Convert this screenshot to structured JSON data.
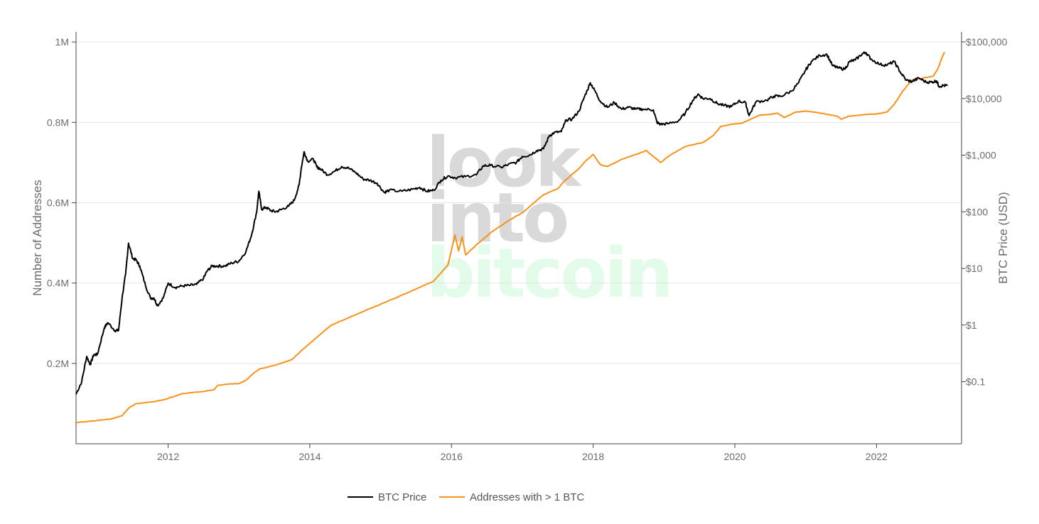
{
  "watermark": {
    "line1": "look",
    "line2": "into",
    "line3": "bitcoin",
    "color_gray": "#d9d9d9",
    "color_green": "#e3fbe9"
  },
  "chart_data": {
    "type": "line",
    "title": "",
    "x_ticks": [
      "2012",
      "2014",
      "2016",
      "2018",
      "2020",
      "2022"
    ],
    "x_range": [
      2010.7,
      2023.2
    ],
    "y_left": {
      "label": "Number of Addresses",
      "ticks": [
        {
          "value": 200000,
          "label": "0.2M"
        },
        {
          "value": 400000,
          "label": "0.4M"
        },
        {
          "value": 600000,
          "label": "0.6M"
        },
        {
          "value": 800000,
          "label": "0.8M"
        },
        {
          "value": 1000000,
          "label": "1M"
        }
      ],
      "range": [
        0,
        1025000
      ]
    },
    "y_right": {
      "label": "BTC Price (USD)",
      "scale": "log",
      "ticks": [
        {
          "value": 0.1,
          "label": "$0.1"
        },
        {
          "value": 1,
          "label": "$1"
        },
        {
          "value": 10,
          "label": "$10"
        },
        {
          "value": 100,
          "label": "$100"
        },
        {
          "value": 1000,
          "label": "$1,000"
        },
        {
          "value": 10000,
          "label": "$10,000"
        },
        {
          "value": 100000,
          "label": "$100,000"
        }
      ],
      "range": [
        0.008,
        150000
      ]
    },
    "grid": true,
    "legend_position": "bottom",
    "series": [
      {
        "name": "BTC Price",
        "axis": "right",
        "color": "#000000",
        "points": [
          [
            2010.7,
            0.06
          ],
          [
            2010.78,
            0.1
          ],
          [
            2010.85,
            0.28
          ],
          [
            2010.9,
            0.2
          ],
          [
            2010.95,
            0.3
          ],
          [
            2011.0,
            0.3
          ],
          [
            2011.1,
            0.9
          ],
          [
            2011.15,
            1.1
          ],
          [
            2011.25,
            0.8
          ],
          [
            2011.3,
            0.8
          ],
          [
            2011.35,
            3.0
          ],
          [
            2011.4,
            8
          ],
          [
            2011.44,
            28
          ],
          [
            2011.5,
            15
          ],
          [
            2011.55,
            14
          ],
          [
            2011.6,
            11
          ],
          [
            2011.68,
            5
          ],
          [
            2011.75,
            3
          ],
          [
            2011.8,
            3
          ],
          [
            2011.85,
            2.2
          ],
          [
            2011.93,
            3
          ],
          [
            2012.0,
            5.5
          ],
          [
            2012.1,
            4.6
          ],
          [
            2012.2,
            4.9
          ],
          [
            2012.3,
            5.0
          ],
          [
            2012.4,
            5.2
          ],
          [
            2012.5,
            6.7
          ],
          [
            2012.55,
            9
          ],
          [
            2012.62,
            11
          ],
          [
            2012.7,
            11
          ],
          [
            2012.8,
            11
          ],
          [
            2012.9,
            12.5
          ],
          [
            2013.0,
            13.5
          ],
          [
            2013.1,
            20
          ],
          [
            2013.18,
            40
          ],
          [
            2013.25,
            100
          ],
          [
            2013.28,
            230
          ],
          [
            2013.32,
            110
          ],
          [
            2013.38,
            120
          ],
          [
            2013.45,
            105
          ],
          [
            2013.52,
            100
          ],
          [
            2013.6,
            110
          ],
          [
            2013.7,
            125
          ],
          [
            2013.78,
            160
          ],
          [
            2013.85,
            300
          ],
          [
            2013.88,
            600
          ],
          [
            2013.92,
            1150
          ],
          [
            2013.97,
            780
          ],
          [
            2014.05,
            850
          ],
          [
            2014.1,
            620
          ],
          [
            2014.15,
            570
          ],
          [
            2014.25,
            450
          ],
          [
            2014.35,
            520
          ],
          [
            2014.45,
            630
          ],
          [
            2014.55,
            590
          ],
          [
            2014.65,
            490
          ],
          [
            2014.75,
            380
          ],
          [
            2014.85,
            360
          ],
          [
            2014.95,
            320
          ],
          [
            2015.05,
            220
          ],
          [
            2015.12,
            240
          ],
          [
            2015.3,
            230
          ],
          [
            2015.45,
            250
          ],
          [
            2015.55,
            270
          ],
          [
            2015.65,
            230
          ],
          [
            2015.75,
            240
          ],
          [
            2015.85,
            360
          ],
          [
            2015.95,
            430
          ],
          [
            2016.05,
            400
          ],
          [
            2016.2,
            420
          ],
          [
            2016.35,
            450
          ],
          [
            2016.45,
            650
          ],
          [
            2016.55,
            660
          ],
          [
            2016.7,
            610
          ],
          [
            2016.8,
            680
          ],
          [
            2016.92,
            750
          ],
          [
            2017.0,
            950
          ],
          [
            2017.1,
            1000
          ],
          [
            2017.2,
            1200
          ],
          [
            2017.3,
            1300
          ],
          [
            2017.38,
            2200
          ],
          [
            2017.45,
            2500
          ],
          [
            2017.55,
            2600
          ],
          [
            2017.62,
            4200
          ],
          [
            2017.7,
            4300
          ],
          [
            2017.8,
            6000
          ],
          [
            2017.88,
            11000
          ],
          [
            2017.96,
            19000
          ],
          [
            2018.02,
            14000
          ],
          [
            2018.1,
            9000
          ],
          [
            2018.2,
            7000
          ],
          [
            2018.3,
            8500
          ],
          [
            2018.4,
            6500
          ],
          [
            2018.5,
            7000
          ],
          [
            2018.6,
            6500
          ],
          [
            2018.7,
            6500
          ],
          [
            2018.85,
            6300
          ],
          [
            2018.9,
            3800
          ],
          [
            2018.95,
            3500
          ],
          [
            2019.05,
            3600
          ],
          [
            2019.2,
            4000
          ],
          [
            2019.3,
            5500
          ],
          [
            2019.4,
            9000
          ],
          [
            2019.48,
            12000
          ],
          [
            2019.55,
            10000
          ],
          [
            2019.65,
            10000
          ],
          [
            2019.75,
            8200
          ],
          [
            2019.85,
            7500
          ],
          [
            2019.95,
            7200
          ],
          [
            2020.05,
            9000
          ],
          [
            2020.15,
            8500
          ],
          [
            2020.2,
            5000
          ],
          [
            2020.3,
            8800
          ],
          [
            2020.45,
            9300
          ],
          [
            2020.55,
            11000
          ],
          [
            2020.65,
            11000
          ],
          [
            2020.8,
            13500
          ],
          [
            2020.9,
            19000
          ],
          [
            2021.0,
            32000
          ],
          [
            2021.08,
            45000
          ],
          [
            2021.2,
            58000
          ],
          [
            2021.3,
            60000
          ],
          [
            2021.38,
            38000
          ],
          [
            2021.45,
            35000
          ],
          [
            2021.55,
            33000
          ],
          [
            2021.62,
            45000
          ],
          [
            2021.7,
            48000
          ],
          [
            2021.8,
            62000
          ],
          [
            2021.85,
            65000
          ],
          [
            2021.92,
            50000
          ],
          [
            2022.05,
            40000
          ],
          [
            2022.15,
            39000
          ],
          [
            2022.25,
            45000
          ],
          [
            2022.33,
            30000
          ],
          [
            2022.42,
            21000
          ],
          [
            2022.5,
            20000
          ],
          [
            2022.6,
            23000
          ],
          [
            2022.7,
            19500
          ],
          [
            2022.78,
            19500
          ],
          [
            2022.85,
            20500
          ],
          [
            2022.88,
            16500
          ],
          [
            2022.95,
            17000
          ],
          [
            2023.0,
            16800
          ]
        ]
      },
      {
        "name": "Addresses with > 1 BTC",
        "axis": "left",
        "color": "#f7931a",
        "points": [
          [
            2010.7,
            53000
          ],
          [
            2011.0,
            58000
          ],
          [
            2011.2,
            62000
          ],
          [
            2011.35,
            70000
          ],
          [
            2011.45,
            90000
          ],
          [
            2011.55,
            100000
          ],
          [
            2011.8,
            105000
          ],
          [
            2011.95,
            110000
          ],
          [
            2012.2,
            125000
          ],
          [
            2012.5,
            130000
          ],
          [
            2012.65,
            135000
          ],
          [
            2012.7,
            145000
          ],
          [
            2012.8,
            148000
          ],
          [
            2013.0,
            150000
          ],
          [
            2013.1,
            158000
          ],
          [
            2013.2,
            175000
          ],
          [
            2013.3,
            187000
          ],
          [
            2013.5,
            195000
          ],
          [
            2013.75,
            210000
          ],
          [
            2013.9,
            235000
          ],
          [
            2014.1,
            265000
          ],
          [
            2014.3,
            295000
          ],
          [
            2014.6,
            318000
          ],
          [
            2014.9,
            340000
          ],
          [
            2015.2,
            362000
          ],
          [
            2015.5,
            385000
          ],
          [
            2015.75,
            405000
          ],
          [
            2015.95,
            445000
          ],
          [
            2016.05,
            520000
          ],
          [
            2016.1,
            480000
          ],
          [
            2016.15,
            515000
          ],
          [
            2016.2,
            470000
          ],
          [
            2016.35,
            495000
          ],
          [
            2016.55,
            525000
          ],
          [
            2016.8,
            555000
          ],
          [
            2017.0,
            575000
          ],
          [
            2017.2,
            605000
          ],
          [
            2017.3,
            620000
          ],
          [
            2017.5,
            635000
          ],
          [
            2017.6,
            655000
          ],
          [
            2017.8,
            685000
          ],
          [
            2017.9,
            705000
          ],
          [
            2018.0,
            720000
          ],
          [
            2018.1,
            695000
          ],
          [
            2018.2,
            690000
          ],
          [
            2018.4,
            708000
          ],
          [
            2018.6,
            720000
          ],
          [
            2018.75,
            730000
          ],
          [
            2018.95,
            700000
          ],
          [
            2019.1,
            720000
          ],
          [
            2019.3,
            740000
          ],
          [
            2019.55,
            750000
          ],
          [
            2019.7,
            768000
          ],
          [
            2019.8,
            790000
          ],
          [
            2019.95,
            795000
          ],
          [
            2020.1,
            798000
          ],
          [
            2020.25,
            810000
          ],
          [
            2020.35,
            818000
          ],
          [
            2020.5,
            820000
          ],
          [
            2020.6,
            823000
          ],
          [
            2020.7,
            812000
          ],
          [
            2020.85,
            825000
          ],
          [
            2021.0,
            828000
          ],
          [
            2021.15,
            825000
          ],
          [
            2021.3,
            820000
          ],
          [
            2021.45,
            815000
          ],
          [
            2021.5,
            808000
          ],
          [
            2021.6,
            815000
          ],
          [
            2021.75,
            818000
          ],
          [
            2021.9,
            820000
          ],
          [
            2022.05,
            822000
          ],
          [
            2022.15,
            826000
          ],
          [
            2022.25,
            845000
          ],
          [
            2022.38,
            880000
          ],
          [
            2022.5,
            905000
          ],
          [
            2022.65,
            910000
          ],
          [
            2022.8,
            915000
          ],
          [
            2022.87,
            935000
          ],
          [
            2022.92,
            960000
          ],
          [
            2022.96,
            975000
          ]
        ]
      }
    ]
  },
  "legend": {
    "items": [
      {
        "label": "BTC Price",
        "color": "#000000"
      },
      {
        "label": "Addresses with > 1 BTC",
        "color": "#f7931a"
      }
    ]
  }
}
